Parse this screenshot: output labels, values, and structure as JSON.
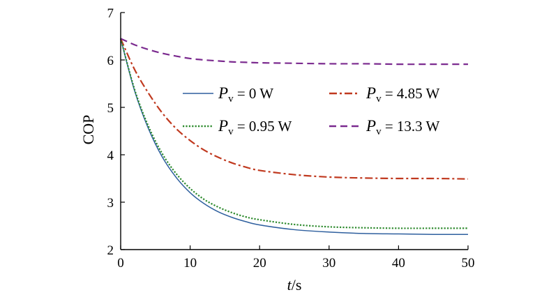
{
  "chart_data": {
    "type": "line",
    "title": "",
    "xlabel_var": "t",
    "xlabel_unit": "/s",
    "ylabel": "COP",
    "xlim": [
      0,
      50
    ],
    "ylim": [
      2,
      7
    ],
    "xticks": [
      0,
      10,
      20,
      30,
      40,
      50
    ],
    "yticks": [
      2,
      3,
      4,
      5,
      6,
      7
    ],
    "grid": false,
    "legend_position": "center-right",
    "series": [
      {
        "name_var": "P",
        "name_sub": "v",
        "name_rest": " = 0 W",
        "color": "#2e5f9e",
        "dash": "solid",
        "x": [
          0,
          2,
          4,
          6,
          8,
          10,
          12,
          14,
          16,
          18,
          20,
          25,
          30,
          35,
          40,
          45,
          50
        ],
        "values": [
          6.45,
          5.35,
          4.55,
          3.95,
          3.52,
          3.2,
          2.97,
          2.8,
          2.68,
          2.59,
          2.52,
          2.42,
          2.37,
          2.34,
          2.33,
          2.32,
          2.32
        ]
      },
      {
        "name_var": "P",
        "name_sub": "v",
        "name_rest": " = 4.85 W",
        "color": "#c0391f",
        "dash": "dashdot",
        "x": [
          0,
          2,
          4,
          6,
          8,
          10,
          12,
          14,
          16,
          18,
          20,
          25,
          30,
          35,
          40,
          45,
          50
        ],
        "values": [
          6.45,
          5.8,
          5.3,
          4.88,
          4.55,
          4.3,
          4.1,
          3.95,
          3.83,
          3.74,
          3.67,
          3.58,
          3.53,
          3.51,
          3.5,
          3.5,
          3.49
        ]
      },
      {
        "name_var": "P",
        "name_sub": "v",
        "name_rest": " = 0.95 W",
        "color": "#2d8a2d",
        "dash": "dotted",
        "x": [
          0,
          2,
          4,
          6,
          8,
          10,
          12,
          14,
          16,
          18,
          20,
          25,
          30,
          35,
          40,
          45,
          50
        ],
        "values": [
          6.45,
          5.38,
          4.6,
          4.02,
          3.6,
          3.29,
          3.06,
          2.9,
          2.78,
          2.69,
          2.63,
          2.53,
          2.48,
          2.46,
          2.45,
          2.45,
          2.45
        ]
      },
      {
        "name_var": "P",
        "name_sub": "v",
        "name_rest": " = 13.3 W",
        "color": "#7b2a8f",
        "dash": "dashed",
        "x": [
          0,
          2,
          4,
          6,
          8,
          10,
          12,
          14,
          16,
          18,
          20,
          25,
          30,
          35,
          40,
          45,
          50
        ],
        "values": [
          6.45,
          6.32,
          6.22,
          6.14,
          6.08,
          6.03,
          6.0,
          5.98,
          5.96,
          5.95,
          5.94,
          5.93,
          5.92,
          5.92,
          5.91,
          5.91,
          5.91
        ]
      }
    ]
  }
}
